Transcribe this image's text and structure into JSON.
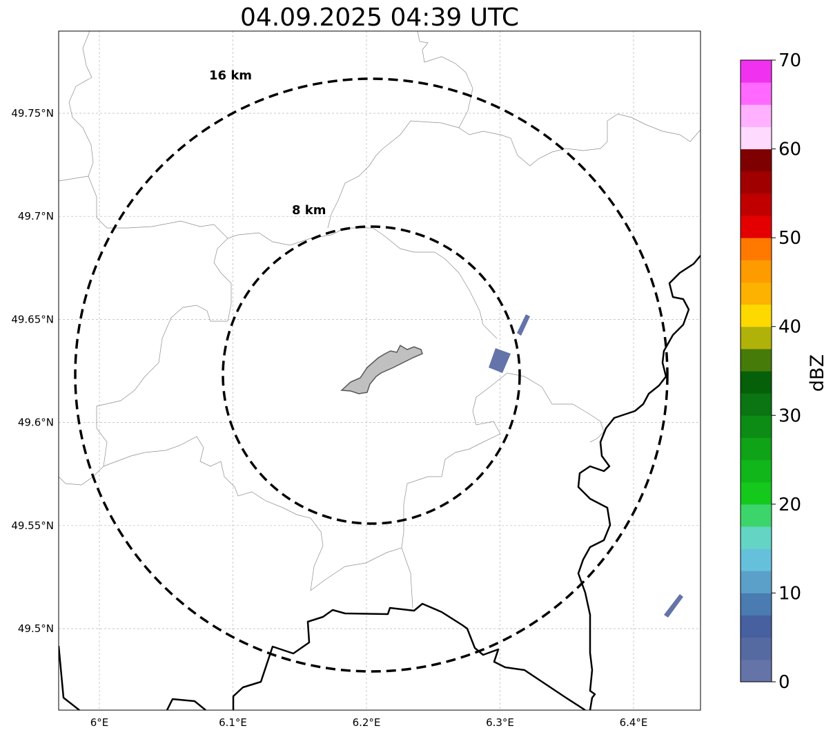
{
  "title": "04.09.2025 04:39 UTC",
  "lon_ticks": [
    {
      "value": 6.0,
      "label": "6°E"
    },
    {
      "value": 6.1,
      "label": "6.1°E"
    },
    {
      "value": 6.2,
      "label": "6.2°E"
    },
    {
      "value": 6.3,
      "label": "6.3°E"
    },
    {
      "value": 6.4,
      "label": "6.4°E"
    }
  ],
  "lat_ticks": [
    {
      "value": 49.75,
      "label": "49.75°N"
    },
    {
      "value": 49.7,
      "label": "49.7°N"
    },
    {
      "value": 49.65,
      "label": "49.65°N"
    },
    {
      "value": 49.6,
      "label": "49.6°N"
    },
    {
      "value": 49.55,
      "label": "49.55°N"
    },
    {
      "value": 49.5,
      "label": "49.5°N"
    }
  ],
  "range_rings": [
    {
      "label": "16 km",
      "radius_km": 16
    },
    {
      "label": "8 km",
      "radius_km": 8
    }
  ],
  "colorbar": {
    "title": "dBZ",
    "min": 0,
    "max": 70,
    "tick_labels": [
      "0",
      "10",
      "20",
      "30",
      "40",
      "50",
      "60",
      "70"
    ],
    "colors": [
      "#6473a8",
      "#566aa2",
      "#4660a0",
      "#4a7bb1",
      "#5ba0c8",
      "#65c0dc",
      "#64d5c5",
      "#3cd56c",
      "#14c81c",
      "#10b61a",
      "#0fa317",
      "#0c8c14",
      "#0a7512",
      "#056009",
      "#467a09",
      "#b0b109",
      "#fdd900",
      "#fdb100",
      "#fe9b00",
      "#ff7800",
      "#e40000",
      "#c00000",
      "#a10000",
      "#7f0000",
      "#ffdaff",
      "#ffb1ff",
      "#ff69ff",
      "#f032f0"
    ]
  },
  "colors": {
    "gridline": "#b5b5b5",
    "border": "#000000",
    "admin_line": "#8c8c8c",
    "lake_fill": "#c0c0c0",
    "echo_fill": "#6473a8"
  }
}
